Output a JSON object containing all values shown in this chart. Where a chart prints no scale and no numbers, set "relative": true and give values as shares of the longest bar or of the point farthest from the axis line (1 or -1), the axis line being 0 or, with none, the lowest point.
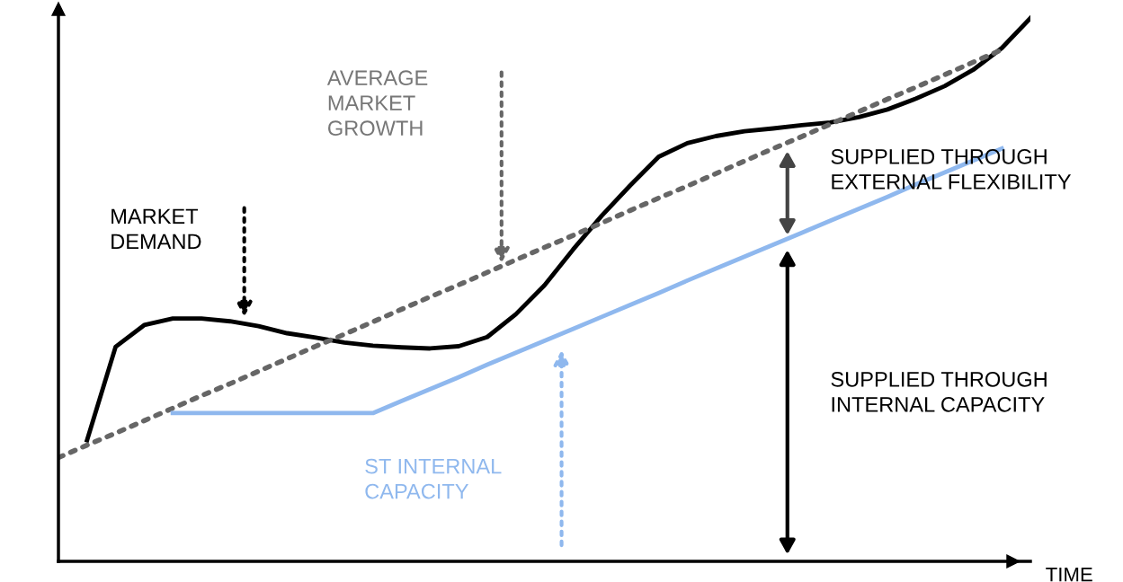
{
  "chart_data": {
    "type": "line",
    "relative": true,
    "xlabel": "TIME",
    "legend": false,
    "categories": [
      null,
      null,
      null,
      null,
      null,
      null,
      null,
      null,
      null,
      null,
      null,
      null,
      null,
      null,
      null,
      null,
      null,
      null,
      null,
      null,
      null,
      null,
      null,
      null,
      null,
      null,
      null,
      null,
      null,
      null,
      null,
      null,
      null,
      null,
      null
    ],
    "series": [
      {
        "color": "#000000",
        "line_style": "solid",
        "values": [
          null,
          0.223,
          0.395,
          0.435,
          0.447,
          0.447,
          0.442,
          0.433,
          0.42,
          0.412,
          0.403,
          0.397,
          0.394,
          0.392,
          0.396,
          0.413,
          0.455,
          0.508,
          0.574,
          0.636,
          0.692,
          0.745,
          0.77,
          0.783,
          0.792,
          0.797,
          0.803,
          0.808,
          0.818,
          0.832,
          0.852,
          0.875,
          0.905,
          0.945,
          1.0
        ]
      },
      {
        "color": "#666666",
        "line_style": "dotted",
        "values": [
          0.191,
          0.214,
          0.236,
          0.259,
          0.282,
          0.305,
          0.327,
          0.35,
          0.373,
          0.396,
          0.418,
          0.441,
          0.464,
          0.487,
          0.509,
          0.532,
          0.555,
          0.578,
          0.6,
          0.623,
          0.646,
          0.669,
          0.691,
          0.714,
          0.737,
          0.76,
          0.782,
          0.805,
          0.828,
          0.851,
          0.873,
          0.896,
          0.919,
          0.942,
          null
        ]
      },
      {
        "color": "#8fb8ee",
        "line_style": "solid",
        "values": [
          null,
          null,
          null,
          null,
          0.273,
          0.273,
          0.273,
          0.273,
          0.273,
          0.273,
          0.273,
          0.273,
          0.295,
          0.317,
          0.339,
          0.362,
          0.384,
          0.406,
          0.428,
          0.45,
          0.472,
          0.494,
          0.517,
          0.539,
          0.561,
          0.583,
          0.605,
          0.627,
          0.649,
          0.671,
          0.694,
          0.716,
          0.738,
          0.76,
          null
        ]
      }
    ],
    "annotations": [
      "MARKET\nDEMAND",
      "AVERAGE\nMARKET\nGROWTH",
      "ST INTERNAL\nCAPACITY",
      "SUPPLIED THROUGH\nEXTERNAL FLEXIBILITY",
      "SUPPLIED THROUGH\nINTERNAL CAPACITY"
    ]
  }
}
